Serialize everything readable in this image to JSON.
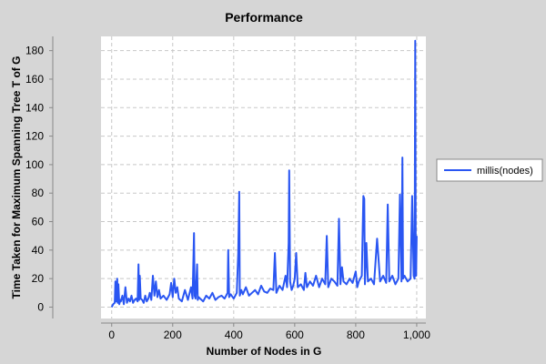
{
  "chart_data": {
    "type": "line",
    "title": "Performance",
    "xlabel": "Number of Nodes in G",
    "ylabel": "Time Taken for Maximum Spanning Tree T of G",
    "xlim": [
      -35,
      1030
    ],
    "ylim": [
      -8,
      190
    ],
    "xticks": [
      0,
      200,
      400,
      600,
      800,
      1000
    ],
    "xtick_labels": [
      "0",
      "200",
      "400",
      "600",
      "800",
      "1,000"
    ],
    "yticks": [
      0,
      20,
      40,
      60,
      80,
      100,
      120,
      140,
      160,
      180
    ],
    "ytick_labels": [
      "0",
      "20",
      "40",
      "60",
      "80",
      "100",
      "120",
      "140",
      "160",
      "180"
    ],
    "grid": true,
    "legend_position": "right",
    "series": [
      {
        "name": "millis(nodes)",
        "color": "#2a56f2",
        "x": [
          0,
          5,
          10,
          12,
          15,
          18,
          20,
          22,
          25,
          28,
          30,
          35,
          40,
          45,
          50,
          55,
          60,
          65,
          70,
          75,
          80,
          85,
          88,
          90,
          92,
          95,
          100,
          105,
          110,
          115,
          120,
          125,
          130,
          135,
          140,
          145,
          150,
          155,
          160,
          170,
          180,
          190,
          195,
          200,
          205,
          210,
          215,
          220,
          230,
          240,
          250,
          260,
          265,
          270,
          272,
          275,
          280,
          282,
          285,
          290,
          300,
          310,
          320,
          330,
          340,
          350,
          360,
          370,
          380,
          382,
          385,
          390,
          400,
          410,
          415,
          418,
          420,
          425,
          430,
          440,
          450,
          460,
          470,
          480,
          490,
          500,
          510,
          520,
          530,
          535,
          540,
          550,
          560,
          570,
          575,
          580,
          582,
          585,
          590,
          595,
          600,
          605,
          610,
          620,
          630,
          635,
          640,
          650,
          660,
          670,
          680,
          690,
          700,
          705,
          710,
          720,
          730,
          740,
          745,
          750,
          755,
          760,
          770,
          780,
          790,
          800,
          805,
          810,
          820,
          825,
          828,
          830,
          835,
          840,
          850,
          860,
          870,
          880,
          890,
          900,
          905,
          910,
          920,
          930,
          940,
          945,
          950,
          953,
          955,
          960,
          970,
          980,
          985,
          990,
          993,
          995,
          997,
          998,
          1000
        ],
        "y": [
          0,
          2,
          3,
          18,
          4,
          20,
          3,
          16,
          2,
          5,
          4,
          8,
          2,
          14,
          3,
          6,
          4,
          8,
          3,
          5,
          6,
          4,
          30,
          5,
          22,
          6,
          5,
          3,
          8,
          4,
          6,
          10,
          5,
          22,
          8,
          18,
          7,
          12,
          6,
          8,
          5,
          9,
          17,
          7,
          20,
          10,
          14,
          6,
          4,
          12,
          5,
          14,
          6,
          52,
          8,
          6,
          30,
          5,
          7,
          6,
          4,
          8,
          6,
          10,
          5,
          7,
          8,
          6,
          10,
          40,
          7,
          9,
          6,
          10,
          38,
          81,
          8,
          12,
          9,
          14,
          8,
          10,
          12,
          9,
          15,
          11,
          10,
          13,
          12,
          38,
          10,
          15,
          12,
          22,
          14,
          45,
          96,
          18,
          12,
          15,
          20,
          38,
          14,
          16,
          12,
          24,
          14,
          18,
          15,
          22,
          14,
          20,
          16,
          50,
          14,
          20,
          18,
          15,
          62,
          16,
          28,
          18,
          16,
          20,
          17,
          25,
          14,
          18,
          22,
          78,
          76,
          16,
          45,
          18,
          20,
          16,
          48,
          18,
          22,
          17,
          72,
          18,
          22,
          16,
          20,
          79,
          18,
          105,
          20,
          22,
          18,
          20,
          78,
          22,
          20,
          187,
          25,
          22,
          50
        ]
      }
    ]
  }
}
